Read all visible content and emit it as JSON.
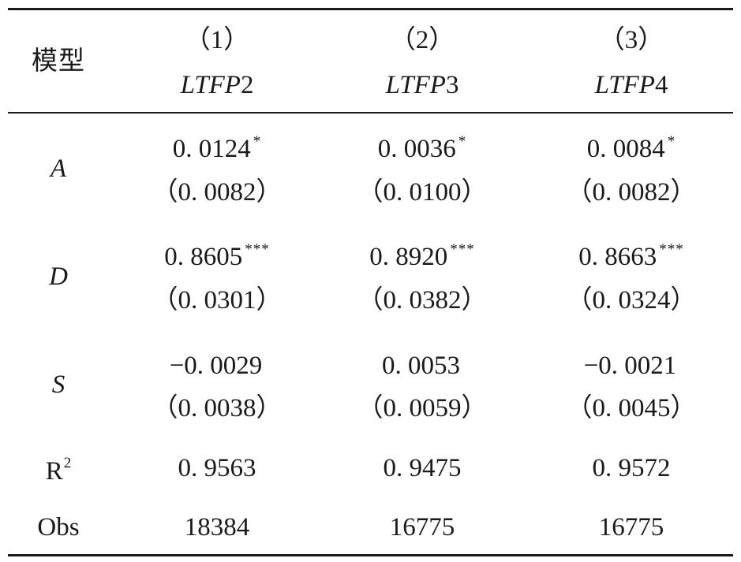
{
  "table": {
    "header": {
      "row_label": "模型",
      "columns": [
        {
          "number": "1",
          "variable": "LTFP",
          "suffix": "2"
        },
        {
          "number": "2",
          "variable": "LTFP",
          "suffix": "3"
        },
        {
          "number": "3",
          "variable": "LTFP",
          "suffix": "4"
        }
      ]
    },
    "rows": [
      {
        "label": "A",
        "coef": [
          "0. 0124",
          "0. 0036",
          "0. 0084"
        ],
        "sig": [
          "*",
          "*",
          "*"
        ],
        "se": [
          "0. 0082",
          "0. 0100",
          "0. 0082"
        ]
      },
      {
        "label": "D",
        "coef": [
          "0. 8605",
          "0. 8920",
          "0. 8663"
        ],
        "sig": [
          "***",
          "***",
          "***"
        ],
        "se": [
          "0. 0301",
          "0. 0382",
          "0. 0324"
        ]
      },
      {
        "label": "S",
        "coef": [
          "−0. 0029",
          "0. 0053",
          "−0. 0021"
        ],
        "sig": [
          "",
          "",
          ""
        ],
        "se": [
          "0. 0038",
          "0. 0059",
          "0. 0045"
        ]
      }
    ],
    "r2": {
      "label": "R",
      "sup": "2",
      "values": [
        "0. 9563",
        "0. 9475",
        "0. 9572"
      ]
    },
    "obs": {
      "label": "Obs",
      "values": [
        "18384",
        "16775",
        "16775"
      ]
    }
  }
}
